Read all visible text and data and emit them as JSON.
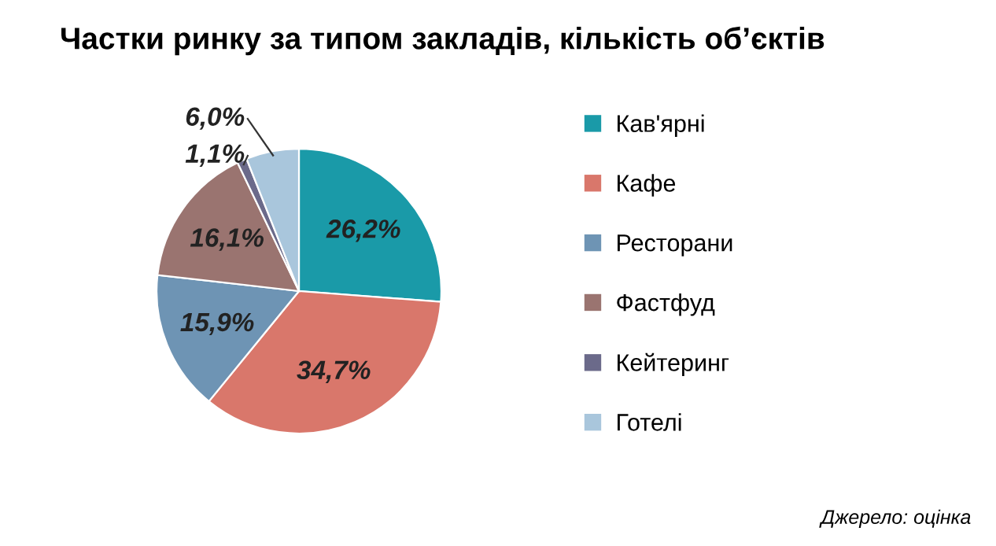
{
  "chart_data": {
    "type": "pie",
    "title": "Частки ринку за типом закладів, кількість об’єктів",
    "categories": [
      "Кав'ярні",
      "Кафе",
      "Ресторани",
      "Фастфуд",
      "Кейтеринг",
      "Готелі"
    ],
    "values": [
      26.2,
      34.7,
      15.9,
      16.1,
      1.1,
      6.0
    ],
    "value_labels": [
      "26,2%",
      "34,7%",
      "15,9%",
      "16,1%",
      "1,1%",
      "6,0%"
    ],
    "colors": [
      "#1a9aa8",
      "#d9776b",
      "#6e94b4",
      "#9a7470",
      "#6b6a8a",
      "#a9c6dc"
    ],
    "legend": "right",
    "annotations": [
      "Джерело: оцінка"
    ]
  }
}
